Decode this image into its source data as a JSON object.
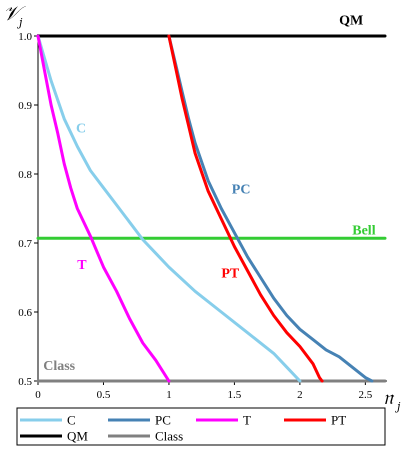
{
  "chart_data": {
    "type": "line",
    "xlabel": "𝔫",
    "xlabel_sub": "j",
    "ylabel": "𝒱",
    "ylabel_sub": "j",
    "xlim": [
      0,
      2.65
    ],
    "ylim": [
      0.5,
      1.0
    ],
    "xticks": [
      "0",
      "0.5",
      "1",
      "1.5",
      "2",
      "2.5"
    ],
    "xtick_values": [
      0,
      0.5,
      1,
      1.5,
      2,
      2.5
    ],
    "yticks": [
      "0.5",
      "0.6",
      "0.7",
      "0.8",
      "0.9",
      "1.0"
    ],
    "ytick_values": [
      0.5,
      0.6,
      0.7,
      0.8,
      0.9,
      1.0
    ],
    "legend_position": "bottom",
    "series": [
      {
        "name": "C",
        "color": "#87CEEB",
        "label": "C",
        "label_at": [
          0.29,
          0.86
        ],
        "points": [
          [
            0,
            1.0
          ],
          [
            0.1,
            0.935
          ],
          [
            0.2,
            0.88
          ],
          [
            0.3,
            0.84
          ],
          [
            0.4,
            0.805
          ],
          [
            0.5,
            0.78
          ],
          [
            0.6,
            0.755
          ],
          [
            0.7,
            0.73
          ],
          [
            0.8,
            0.705
          ],
          [
            0.9,
            0.685
          ],
          [
            1.0,
            0.665
          ],
          [
            1.2,
            0.63
          ],
          [
            1.4,
            0.6
          ],
          [
            1.6,
            0.57
          ],
          [
            1.8,
            0.54
          ],
          [
            1.9,
            0.52
          ],
          [
            2.0,
            0.5
          ]
        ]
      },
      {
        "name": "PC",
        "color": "#4682B4",
        "label": "PC",
        "label_at": [
          1.48,
          0.772
        ],
        "points": [
          [
            1.0,
            1.0
          ],
          [
            1.05,
            0.96
          ],
          [
            1.1,
            0.92
          ],
          [
            1.15,
            0.88
          ],
          [
            1.2,
            0.845
          ],
          [
            1.3,
            0.79
          ],
          [
            1.4,
            0.75
          ],
          [
            1.5,
            0.715
          ],
          [
            1.6,
            0.68
          ],
          [
            1.7,
            0.65
          ],
          [
            1.8,
            0.62
          ],
          [
            1.9,
            0.595
          ],
          [
            2.0,
            0.575
          ],
          [
            2.1,
            0.56
          ],
          [
            2.2,
            0.545
          ],
          [
            2.3,
            0.535
          ],
          [
            2.4,
            0.52
          ],
          [
            2.5,
            0.505
          ],
          [
            2.55,
            0.5
          ]
        ]
      },
      {
        "name": "T",
        "color": "#FF00FF",
        "label": "T",
        "label_at": [
          0.3,
          0.662
        ],
        "points": [
          [
            0,
            1.0
          ],
          [
            0.05,
            0.95
          ],
          [
            0.1,
            0.9
          ],
          [
            0.15,
            0.86
          ],
          [
            0.2,
            0.815
          ],
          [
            0.25,
            0.78
          ],
          [
            0.3,
            0.75
          ],
          [
            0.4,
            0.71
          ],
          [
            0.5,
            0.665
          ],
          [
            0.6,
            0.63
          ],
          [
            0.7,
            0.59
          ],
          [
            0.8,
            0.555
          ],
          [
            0.9,
            0.53
          ],
          [
            1.0,
            0.5
          ]
        ]
      },
      {
        "name": "PT",
        "color": "#FF0000",
        "label": "PT",
        "label_at": [
          1.4,
          0.65
        ],
        "points": [
          [
            1.0,
            1.0
          ],
          [
            1.05,
            0.955
          ],
          [
            1.1,
            0.91
          ],
          [
            1.15,
            0.87
          ],
          [
            1.2,
            0.83
          ],
          [
            1.3,
            0.775
          ],
          [
            1.4,
            0.735
          ],
          [
            1.5,
            0.695
          ],
          [
            1.6,
            0.66
          ],
          [
            1.7,
            0.625
          ],
          [
            1.8,
            0.595
          ],
          [
            1.9,
            0.57
          ],
          [
            2.0,
            0.55
          ],
          [
            2.1,
            0.525
          ],
          [
            2.15,
            0.505
          ],
          [
            2.17,
            0.5
          ]
        ]
      },
      {
        "name": "QM",
        "color": "#000000",
        "label": "QM",
        "label_at": [
          2.3,
          1.017
        ],
        "points": [
          [
            0,
            1.0
          ],
          [
            2.65,
            1.0
          ]
        ]
      },
      {
        "name": "Class",
        "color": "#808080",
        "label": "Class",
        "label_at": [
          0.04,
          0.516
        ],
        "points": [
          [
            0,
            0.5
          ],
          [
            2.65,
            0.5
          ]
        ]
      },
      {
        "name": "Bell",
        "color": "#33CC33",
        "label": "Bell",
        "label_at": [
          2.4,
          0.712
        ],
        "points": [
          [
            0,
            0.707
          ],
          [
            2.65,
            0.707
          ]
        ]
      }
    ],
    "legend": [
      [
        "C",
        "PC",
        "T",
        "PT"
      ],
      [
        "QM",
        "Class"
      ]
    ]
  }
}
